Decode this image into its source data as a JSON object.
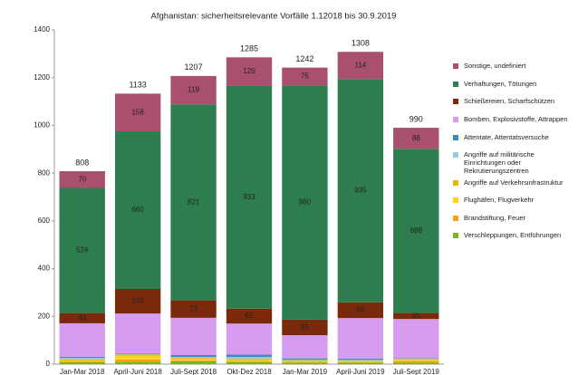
{
  "chart_data": {
    "type": "stacked_bar",
    "title": "Afghanistan: sicherheitsrelevante Vorfälle 1.12018 bis 30.9.2019",
    "categories": [
      "Jan-Mar 2018",
      "April-Juni 2018",
      "Juli-Sept 2018",
      "Okt-Dez 2018",
      "Jan-Mar 2019",
      "April-Juni 2019",
      "Juli-Sept 2019"
    ],
    "totals": [
      808,
      1133,
      1207,
      1285,
      1242,
      1308,
      990
    ],
    "ylim": [
      0,
      1400
    ],
    "yticks": [
      0,
      200,
      400,
      600,
      800,
      1000,
      1200,
      1400
    ],
    "grid": false,
    "series": [
      {
        "name": "Verschleppungen, Entführungen",
        "color": "#7ab51d",
        "values": [
          8,
          10,
          12,
          8,
          6,
          6,
          6
        ]
      },
      {
        "name": "Brandstiftung, Feuer",
        "color": "#ff9f1a",
        "values": [
          4,
          10,
          4,
          4,
          3,
          3,
          8
        ]
      },
      {
        "name": "Flughäfen, Flugverkehr",
        "color": "#ffd320",
        "values": [
          3,
          15,
          4,
          4,
          2,
          2,
          4
        ]
      },
      {
        "name": "Angriffe auf Verkehrsinfrastruktur",
        "color": "#e8b800",
        "values": [
          5,
          5,
          6,
          6,
          4,
          3,
          3
        ]
      },
      {
        "name": "Angriffe auf militärische Einrichtungen oder Rekrutierungszentren",
        "color": "#9cc8e0",
        "values": [
          6,
          3,
          4,
          8,
          4,
          4,
          2
        ]
      },
      {
        "name": "Attentate, Attentatsversuche",
        "color": "#3a8fb7",
        "values": [
          5,
          3,
          8,
          10,
          5,
          5,
          2
        ]
      },
      {
        "name": "Bomben, Explosivstoffe, Attrappen",
        "color": "#d59cf0",
        "values": [
          140,
          166,
          156,
          130,
          97,
          170,
          164
        ]
      },
      {
        "name": "Schießereien, Scharfschützen",
        "color": "#7a2a0a",
        "values": [
          43,
          103,
          73,
          62,
          66,
          66,
          25
        ],
        "show_labels": true
      },
      {
        "name": "Verhaftungen, Tötungen",
        "color": "#2e7d4f",
        "values": [
          524,
          660,
          821,
          933,
          980,
          935,
          688
        ],
        "show_labels": true
      },
      {
        "name": "Sonstige, undefiniert",
        "color": "#a8506e",
        "values": [
          70,
          158,
          119,
          120,
          75,
          114,
          88
        ],
        "show_labels": true
      }
    ]
  }
}
